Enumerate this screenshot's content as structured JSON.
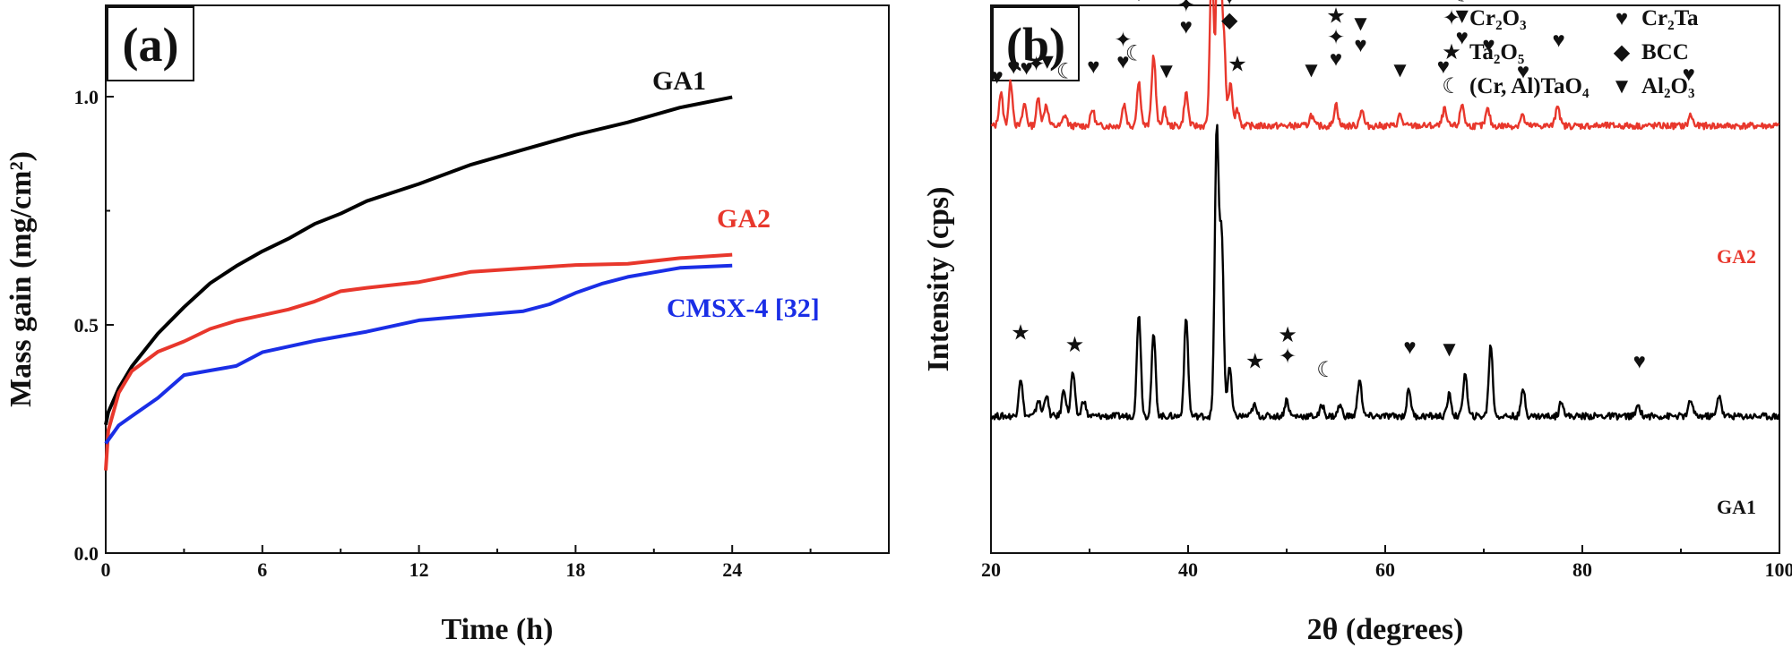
{
  "chart_data": [
    {
      "panel_label": "(a)",
      "type": "line",
      "xlabel": "Time (h)",
      "ylabel": "Mass gain (mg/cm²)",
      "xlim": [
        0,
        30
      ],
      "ylim": [
        0,
        1.2
      ],
      "xticks": [
        "0",
        "6",
        "12",
        "18",
        "24"
      ],
      "yticks": [
        "0.0",
        "0.5",
        "1.0"
      ],
      "grid": false,
      "series": [
        {
          "name": "GA1",
          "color": "#000000",
          "x": [
            0,
            0.1,
            0.5,
            1,
            2,
            3,
            4,
            5,
            6,
            7,
            8,
            9,
            10,
            12,
            14,
            16,
            18,
            20,
            22,
            24
          ],
          "y": [
            0.28,
            0.31,
            0.36,
            0.41,
            0.48,
            0.54,
            0.59,
            0.63,
            0.66,
            0.69,
            0.72,
            0.745,
            0.77,
            0.81,
            0.85,
            0.885,
            0.915,
            0.945,
            0.975,
            1.0
          ]
        },
        {
          "name": "GA2",
          "color": "#e8372c",
          "x": [
            0,
            0.1,
            0.5,
            1,
            2,
            3,
            4,
            5,
            6,
            7,
            8,
            9,
            10,
            12,
            14,
            16,
            18,
            20,
            22,
            24
          ],
          "y": [
            0.18,
            0.27,
            0.35,
            0.4,
            0.44,
            0.465,
            0.49,
            0.51,
            0.52,
            0.535,
            0.55,
            0.575,
            0.58,
            0.595,
            0.615,
            0.625,
            0.63,
            0.635,
            0.645,
            0.655
          ]
        },
        {
          "name": "CMSX-4 [32]",
          "color": "#1a2ee6",
          "x": [
            0,
            0.5,
            1,
            2,
            3,
            4,
            5,
            6,
            8,
            10,
            12,
            14,
            16,
            17,
            18,
            19,
            20,
            21,
            22,
            24
          ],
          "y": [
            0.24,
            0.28,
            0.3,
            0.34,
            0.39,
            0.4,
            0.41,
            0.44,
            0.465,
            0.485,
            0.51,
            0.52,
            0.53,
            0.545,
            0.57,
            0.59,
            0.605,
            0.615,
            0.625,
            0.63
          ]
        }
      ]
    },
    {
      "panel_label": "(b)",
      "type": "line",
      "xlabel": "2θ (degrees)",
      "ylabel": "Intensity (cps)",
      "xlim": [
        20,
        100
      ],
      "xticks": [
        "20",
        "40",
        "60",
        "80",
        "100"
      ],
      "grid": false,
      "series": [
        {
          "name": "GA2",
          "color": "#e8372c",
          "baseline": 0.78,
          "peaks": [
            [
              21.0,
              0.06
            ],
            [
              22.0,
              0.08
            ],
            [
              23.4,
              0.04
            ],
            [
              24.8,
              0.05
            ],
            [
              25.6,
              0.04
            ],
            [
              27.5,
              0.02
            ],
            [
              30.3,
              0.03
            ],
            [
              33.5,
              0.04
            ],
            [
              35.0,
              0.08
            ],
            [
              36.5,
              0.13
            ],
            [
              37.6,
              0.03
            ],
            [
              39.8,
              0.06
            ],
            [
              42.4,
              0.29
            ],
            [
              43.1,
              0.52
            ],
            [
              43.6,
              0.16
            ],
            [
              44.3,
              0.08
            ],
            [
              45.0,
              0.03
            ],
            [
              52.5,
              0.02
            ],
            [
              55.0,
              0.04
            ],
            [
              57.6,
              0.03
            ],
            [
              61.5,
              0.02
            ],
            [
              66.0,
              0.03
            ],
            [
              67.8,
              0.04
            ],
            [
              70.4,
              0.03
            ],
            [
              73.9,
              0.02
            ],
            [
              77.5,
              0.04
            ],
            [
              91.0,
              0.02
            ]
          ]
        },
        {
          "name": "GA1",
          "color": "#000000",
          "baseline": 0.25,
          "peaks": [
            [
              23.0,
              0.07
            ],
            [
              24.8,
              0.03
            ],
            [
              25.6,
              0.04
            ],
            [
              27.4,
              0.05
            ],
            [
              28.3,
              0.08
            ],
            [
              29.4,
              0.03
            ],
            [
              35.0,
              0.19
            ],
            [
              36.5,
              0.15
            ],
            [
              39.8,
              0.18
            ],
            [
              42.9,
              0.52
            ],
            [
              43.4,
              0.33
            ],
            [
              44.2,
              0.09
            ],
            [
              46.7,
              0.02
            ],
            [
              50.0,
              0.03
            ],
            [
              53.6,
              0.02
            ],
            [
              55.4,
              0.02
            ],
            [
              57.4,
              0.07
            ],
            [
              62.4,
              0.05
            ],
            [
              66.5,
              0.04
            ],
            [
              68.1,
              0.08
            ],
            [
              70.7,
              0.13
            ],
            [
              74.0,
              0.05
            ],
            [
              77.9,
              0.03
            ],
            [
              85.7,
              0.02
            ],
            [
              91.0,
              0.03
            ],
            [
              93.9,
              0.04
            ]
          ]
        }
      ],
      "legend": [
        {
          "symbol": "✦",
          "label": "Cr₂O₃"
        },
        {
          "symbol": "♥",
          "label": "Cr₂Ta"
        },
        {
          "symbol": "★",
          "label": "Ta₂O₅"
        },
        {
          "symbol": "◆",
          "label": "BCC"
        },
        {
          "symbol": "☾",
          "label": "(Cr, Al)TaO₄"
        },
        {
          "symbol": "▼",
          "label": "Al₂O₃"
        }
      ],
      "legend_location": "top-right",
      "annotations": {
        "GA2": [
          [
            "♥",
            20.6,
            0
          ],
          [
            "♥",
            22.3,
            0
          ],
          [
            "♥",
            23.6,
            0
          ],
          [
            "✦",
            24.6,
            0
          ],
          [
            "▼",
            25.7,
            0
          ],
          [
            "☾",
            27.6,
            0
          ],
          [
            "♥",
            30.4,
            0
          ],
          [
            "♥",
            33.4,
            0
          ],
          [
            "✦",
            33.4,
            1
          ],
          [
            "☾",
            34.6,
            1
          ],
          [
            "▼",
            35.0,
            2
          ],
          [
            "♥",
            36.6,
            2
          ],
          [
            "✦",
            36.6,
            3
          ],
          [
            "★",
            36.6,
            4
          ],
          [
            "▼",
            37.8,
            0
          ],
          [
            "♥",
            39.8,
            1
          ],
          [
            "✦",
            39.8,
            2
          ],
          [
            "☾",
            39.8,
            3
          ],
          [
            "♥",
            42.1,
            5
          ],
          [
            "♥",
            43.2,
            9
          ],
          [
            "▼",
            43.2,
            10
          ],
          [
            "◆",
            44.2,
            1
          ],
          [
            "✦",
            44.2,
            2
          ],
          [
            "★",
            45.0,
            0
          ],
          [
            "▼",
            52.5,
            0
          ],
          [
            "♥",
            55.0,
            0
          ],
          [
            "✦",
            55.0,
            1
          ],
          [
            "★",
            55.0,
            2
          ],
          [
            "♥",
            57.5,
            1
          ],
          [
            "▼",
            57.5,
            2
          ],
          [
            "▼",
            61.5,
            0
          ],
          [
            "♥",
            65.9,
            0
          ],
          [
            "♥",
            67.8,
            1
          ],
          [
            "▼",
            67.8,
            2
          ],
          [
            "☾",
            67.8,
            3
          ],
          [
            "♥",
            70.5,
            1
          ],
          [
            "♥",
            74.0,
            0
          ],
          [
            "♥",
            77.6,
            1
          ],
          [
            "♥",
            90.8,
            0
          ]
        ],
        "GA1": [
          [
            "★",
            23.0,
            0
          ],
          [
            "★",
            28.5,
            0
          ],
          [
            "★",
            46.8,
            0
          ],
          [
            "✦",
            50.1,
            0
          ],
          [
            "★",
            50.1,
            1
          ],
          [
            "☾",
            54.0,
            0
          ],
          [
            "♥",
            62.5,
            0
          ],
          [
            "▼",
            66.5,
            0
          ],
          [
            "♥",
            85.8,
            0
          ]
        ]
      }
    }
  ]
}
